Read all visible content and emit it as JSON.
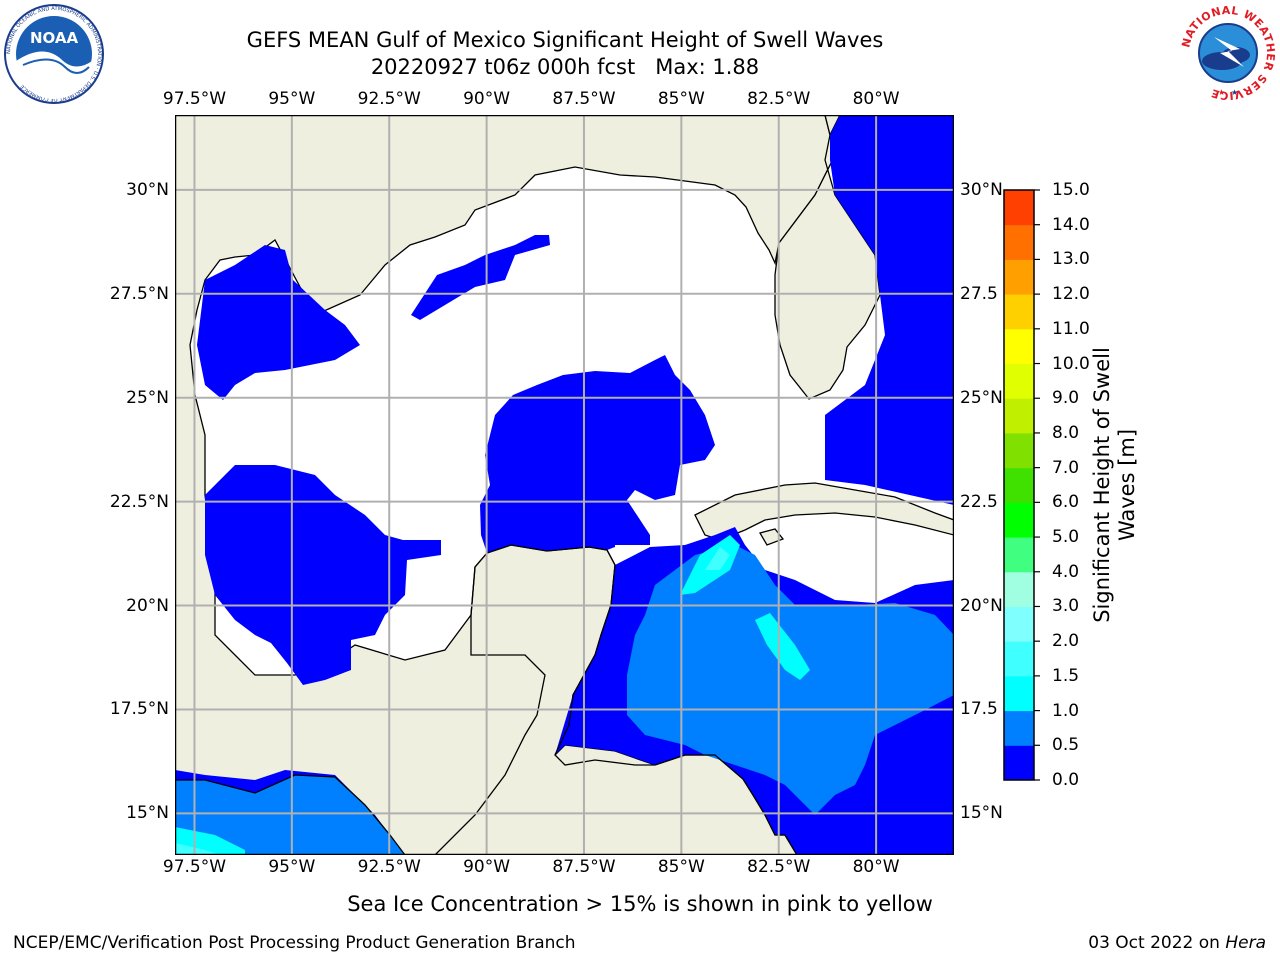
{
  "title": {
    "line1": "GEFS MEAN Gulf of Mexico Significant Height of Swell Waves",
    "line2": "20220927 t06z 000h fcst   Max: 1.88"
  },
  "map": {
    "lon_range": [
      -98,
      -78
    ],
    "lat_range": [
      14,
      31.8
    ],
    "lon_ticks": [
      {
        "value": -97.5,
        "label": "97.5°W"
      },
      {
        "value": -95,
        "label": "95°W"
      },
      {
        "value": -92.5,
        "label": "92.5°W"
      },
      {
        "value": -90,
        "label": "90°W"
      },
      {
        "value": -87.5,
        "label": "87.5°W"
      },
      {
        "value": -85,
        "label": "85°W"
      },
      {
        "value": -82.5,
        "label": "82.5°W"
      },
      {
        "value": -80,
        "label": "80°W"
      }
    ],
    "lat_ticks": [
      {
        "value": 30,
        "label": "30°N"
      },
      {
        "value": 27.5,
        "label": "27.5°N"
      },
      {
        "value": 25,
        "label": "25°N"
      },
      {
        "value": 22.5,
        "label": "22.5°N"
      },
      {
        "value": 20,
        "label": "20°N"
      },
      {
        "value": 17.5,
        "label": "17.5°N"
      },
      {
        "value": 15,
        "label": "15°N"
      }
    ],
    "right_lat_labels": [
      "30°N",
      "27.5",
      "25°N",
      "22.5",
      "20°N",
      "17.5",
      "15°N"
    ],
    "land_color": "#efefdf",
    "ocean_no_data_color": "#ffffff",
    "grid_color": "#b0b0b0"
  },
  "colorbar": {
    "label_line1": "Significant Height of Swell",
    "label_line2": "Waves [m]",
    "ticks": [
      "0.0",
      "0.5",
      "1.0",
      "1.5",
      "2.0",
      "3.0",
      "4.0",
      "5.0",
      "6.0",
      "7.0",
      "8.0",
      "9.0",
      "10.0",
      "11.0",
      "12.0",
      "13.0",
      "14.0",
      "15.0"
    ],
    "colors": [
      "#0000ff",
      "#0080ff",
      "#00ffff",
      "#40ffff",
      "#80ffff",
      "#a0ffe0",
      "#40ff80",
      "#00ff00",
      "#40e000",
      "#80e000",
      "#c0f000",
      "#e0ff00",
      "#ffff00",
      "#ffd000",
      "#ffa000",
      "#ff7000",
      "#ff4000",
      "#ff0000"
    ]
  },
  "ice_note": "Sea Ice Concentration > 15% is shown in pink to yellow",
  "footer": {
    "left": "NCEP/EMC/Verification Post Processing Product Generation Branch",
    "date": "03 Oct 2022 on ",
    "machine": "Hera"
  },
  "logos": {
    "noaa_text": "NOAA",
    "noaa_ring_text": "NATIONAL OCEANIC AND ATMOSPHERIC ADMINISTRATION · U.S. DEPARTMENT OF COMMERCE",
    "nws_ring_text": "NATIONAL WEATHER SERVICE"
  }
}
